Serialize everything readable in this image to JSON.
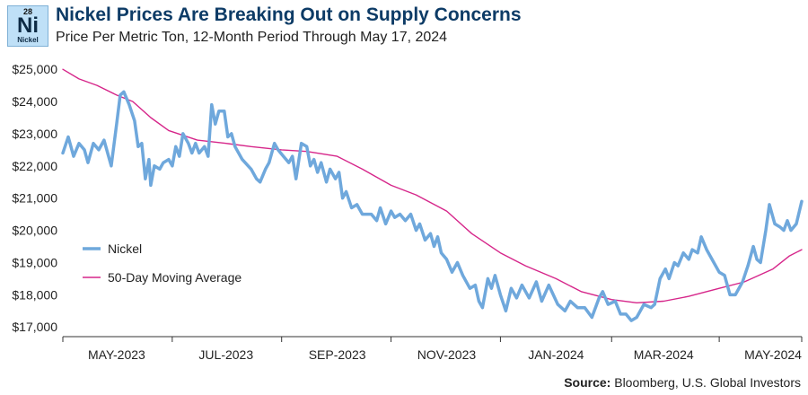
{
  "header": {
    "logo_number": "28",
    "logo_symbol": "Ni",
    "logo_name": "Nickel",
    "title": "Nickel Prices Are Breaking Out on Supply Concerns",
    "subtitle": "Price Per Metric Ton, 12-Month Period Through May 17, 2024"
  },
  "footer": {
    "source_label": "Source:",
    "source_text": " Bloomberg, U.S. Global Investors"
  },
  "chart_data": {
    "type": "line",
    "x_start": "2023-04-01",
    "x_end": "2024-05-17",
    "ylim": [
      16700,
      25200
    ],
    "yticks": [
      17000,
      18000,
      19000,
      20000,
      21000,
      22000,
      23000,
      24000,
      25000
    ],
    "ytick_labels": [
      "$17,000",
      "$18,000",
      "$19,000",
      "$20,000",
      "$21,000",
      "$22,000",
      "$23,000",
      "$24,000",
      "$25,000"
    ],
    "xtick_labels": [
      {
        "date": "2023-05-01",
        "label": "MAY-2023"
      },
      {
        "date": "2023-07-01",
        "label": "JUL-2023"
      },
      {
        "date": "2023-09-01",
        "label": "SEP-2023"
      },
      {
        "date": "2023-11-01",
        "label": "NOV-2023"
      },
      {
        "date": "2024-01-01",
        "label": "JAN-2024"
      },
      {
        "date": "2024-03-01",
        "label": "MAR-2024"
      },
      {
        "date": "2024-05-01",
        "label": "MAY-2024"
      }
    ],
    "axis_boundaries": [
      "2023-04-01",
      "2023-06-01",
      "2023-08-01",
      "2023-10-01",
      "2023-12-01",
      "2024-02-01",
      "2024-04-01",
      "2024-05-17"
    ],
    "legend_position": "left",
    "grid": false,
    "series": [
      {
        "name": "Nickel",
        "color": "#6fa8dc",
        "points": [
          [
            "2023-04-01",
            22400
          ],
          [
            "2023-04-04",
            22900
          ],
          [
            "2023-04-07",
            22300
          ],
          [
            "2023-04-10",
            22700
          ],
          [
            "2023-04-13",
            22500
          ],
          [
            "2023-04-15",
            22100
          ],
          [
            "2023-04-18",
            22700
          ],
          [
            "2023-04-21",
            22500
          ],
          [
            "2023-04-24",
            22800
          ],
          [
            "2023-04-26",
            22400
          ],
          [
            "2023-04-28",
            22000
          ],
          [
            "2023-05-01",
            23300
          ],
          [
            "2023-05-03",
            24200
          ],
          [
            "2023-05-05",
            24300
          ],
          [
            "2023-05-08",
            23900
          ],
          [
            "2023-05-11",
            23400
          ],
          [
            "2023-05-13",
            22600
          ],
          [
            "2023-05-15",
            22700
          ],
          [
            "2023-05-17",
            21600
          ],
          [
            "2023-05-19",
            22200
          ],
          [
            "2023-05-20",
            21400
          ],
          [
            "2023-05-22",
            22000
          ],
          [
            "2023-05-25",
            21900
          ],
          [
            "2023-05-27",
            22100
          ],
          [
            "2023-05-30",
            22200
          ],
          [
            "2023-06-01",
            22000
          ],
          [
            "2023-06-03",
            22600
          ],
          [
            "2023-06-05",
            22300
          ],
          [
            "2023-06-07",
            23000
          ],
          [
            "2023-06-10",
            22700
          ],
          [
            "2023-06-12",
            22400
          ],
          [
            "2023-06-14",
            22700
          ],
          [
            "2023-06-16",
            22400
          ],
          [
            "2023-06-19",
            22600
          ],
          [
            "2023-06-21",
            22300
          ],
          [
            "2023-06-23",
            23900
          ],
          [
            "2023-06-25",
            23300
          ],
          [
            "2023-06-27",
            23700
          ],
          [
            "2023-06-30",
            23700
          ],
          [
            "2023-07-02",
            22900
          ],
          [
            "2023-07-04",
            23000
          ],
          [
            "2023-07-06",
            22600
          ],
          [
            "2023-07-10",
            22200
          ],
          [
            "2023-07-15",
            21900
          ],
          [
            "2023-07-18",
            21600
          ],
          [
            "2023-07-20",
            21500
          ],
          [
            "2023-07-23",
            21900
          ],
          [
            "2023-07-25",
            22100
          ],
          [
            "2023-07-28",
            22700
          ],
          [
            "2023-07-30",
            22500
          ],
          [
            "2023-08-02",
            22300
          ],
          [
            "2023-08-05",
            22100
          ],
          [
            "2023-08-07",
            22300
          ],
          [
            "2023-08-09",
            21600
          ],
          [
            "2023-08-12",
            22700
          ],
          [
            "2023-08-15",
            22600
          ],
          [
            "2023-08-17",
            22000
          ],
          [
            "2023-08-19",
            22200
          ],
          [
            "2023-08-21",
            21800
          ],
          [
            "2023-08-23",
            22100
          ],
          [
            "2023-08-26",
            21500
          ],
          [
            "2023-08-28",
            21900
          ],
          [
            "2023-08-31",
            21600
          ],
          [
            "2023-09-02",
            21800
          ],
          [
            "2023-09-04",
            21000
          ],
          [
            "2023-09-06",
            21200
          ],
          [
            "2023-09-09",
            20700
          ],
          [
            "2023-09-12",
            20800
          ],
          [
            "2023-09-15",
            20500
          ],
          [
            "2023-09-20",
            20500
          ],
          [
            "2023-09-23",
            20300
          ],
          [
            "2023-09-25",
            20700
          ],
          [
            "2023-09-28",
            20200
          ],
          [
            "2023-10-01",
            20600
          ],
          [
            "2023-10-03",
            20400
          ],
          [
            "2023-10-06",
            20500
          ],
          [
            "2023-10-09",
            20300
          ],
          [
            "2023-10-12",
            20500
          ],
          [
            "2023-10-15",
            20000
          ],
          [
            "2023-10-17",
            20200
          ],
          [
            "2023-10-20",
            19700
          ],
          [
            "2023-10-23",
            19900
          ],
          [
            "2023-10-25",
            19500
          ],
          [
            "2023-10-27",
            19800
          ],
          [
            "2023-10-29",
            19300
          ],
          [
            "2023-11-01",
            19100
          ],
          [
            "2023-11-04",
            18700
          ],
          [
            "2023-11-07",
            19000
          ],
          [
            "2023-11-10",
            18600
          ],
          [
            "2023-11-14",
            18200
          ],
          [
            "2023-11-17",
            18300
          ],
          [
            "2023-11-19",
            17800
          ],
          [
            "2023-11-21",
            17600
          ],
          [
            "2023-11-24",
            18500
          ],
          [
            "2023-11-26",
            18200
          ],
          [
            "2023-11-28",
            18600
          ],
          [
            "2023-12-01",
            18000
          ],
          [
            "2023-12-04",
            17500
          ],
          [
            "2023-12-07",
            18200
          ],
          [
            "2023-12-10",
            17900
          ],
          [
            "2023-12-13",
            18300
          ],
          [
            "2023-12-17",
            17900
          ],
          [
            "2023-12-21",
            18400
          ],
          [
            "2023-12-24",
            17800
          ],
          [
            "2023-12-28",
            18300
          ],
          [
            "2024-01-02",
            17700
          ],
          [
            "2024-01-06",
            17500
          ],
          [
            "2024-01-09",
            17800
          ],
          [
            "2024-01-13",
            17600
          ],
          [
            "2024-01-17",
            17600
          ],
          [
            "2024-01-21",
            17300
          ],
          [
            "2024-01-25",
            17900
          ],
          [
            "2024-01-27",
            18100
          ],
          [
            "2024-01-30",
            17700
          ],
          [
            "2024-02-03",
            17800
          ],
          [
            "2024-02-06",
            17400
          ],
          [
            "2024-02-09",
            17400
          ],
          [
            "2024-02-12",
            17200
          ],
          [
            "2024-02-15",
            17300
          ],
          [
            "2024-02-19",
            17700
          ],
          [
            "2024-02-23",
            17600
          ],
          [
            "2024-02-25",
            17700
          ],
          [
            "2024-02-28",
            18500
          ],
          [
            "2024-03-02",
            18800
          ],
          [
            "2024-03-04",
            18500
          ],
          [
            "2024-03-07",
            19000
          ],
          [
            "2024-03-09",
            18900
          ],
          [
            "2024-03-12",
            19300
          ],
          [
            "2024-03-15",
            19100
          ],
          [
            "2024-03-17",
            19400
          ],
          [
            "2024-03-20",
            19300
          ],
          [
            "2024-03-22",
            19800
          ],
          [
            "2024-03-25",
            19400
          ],
          [
            "2024-03-28",
            19100
          ],
          [
            "2024-04-01",
            18700
          ],
          [
            "2024-04-04",
            18600
          ],
          [
            "2024-04-07",
            18000
          ],
          [
            "2024-04-10",
            18000
          ],
          [
            "2024-04-14",
            18400
          ],
          [
            "2024-04-17",
            18900
          ],
          [
            "2024-04-20",
            19500
          ],
          [
            "2024-04-22",
            19100
          ],
          [
            "2024-04-24",
            19000
          ],
          [
            "2024-04-27",
            20000
          ],
          [
            "2024-04-29",
            20800
          ],
          [
            "2024-05-02",
            20200
          ],
          [
            "2024-05-05",
            20100
          ],
          [
            "2024-05-07",
            20000
          ],
          [
            "2024-05-09",
            20300
          ],
          [
            "2024-05-11",
            20000
          ],
          [
            "2024-05-14",
            20200
          ],
          [
            "2024-05-17",
            20900
          ]
        ]
      },
      {
        "name": "50-Day Moving Average",
        "color": "#d6268a",
        "points": [
          [
            "2023-04-01",
            25000
          ],
          [
            "2023-04-10",
            24700
          ],
          [
            "2023-04-20",
            24500
          ],
          [
            "2023-05-01",
            24200
          ],
          [
            "2023-05-10",
            24000
          ],
          [
            "2023-05-20",
            23500
          ],
          [
            "2023-05-30",
            23100
          ],
          [
            "2023-06-15",
            22800
          ],
          [
            "2023-07-01",
            22700
          ],
          [
            "2023-07-15",
            22600
          ],
          [
            "2023-08-01",
            22500
          ],
          [
            "2023-08-15",
            22450
          ],
          [
            "2023-09-01",
            22300
          ],
          [
            "2023-09-15",
            21900
          ],
          [
            "2023-10-01",
            21400
          ],
          [
            "2023-10-15",
            21100
          ],
          [
            "2023-11-01",
            20600
          ],
          [
            "2023-11-15",
            19900
          ],
          [
            "2023-12-01",
            19300
          ],
          [
            "2023-12-15",
            18900
          ],
          [
            "2024-01-01",
            18500
          ],
          [
            "2024-01-15",
            18100
          ],
          [
            "2024-02-01",
            17850
          ],
          [
            "2024-02-15",
            17750
          ],
          [
            "2024-03-01",
            17800
          ],
          [
            "2024-03-15",
            17950
          ],
          [
            "2024-04-01",
            18200
          ],
          [
            "2024-04-15",
            18400
          ],
          [
            "2024-05-01",
            18800
          ],
          [
            "2024-05-10",
            19200
          ],
          [
            "2024-05-17",
            19400
          ]
        ]
      }
    ]
  }
}
